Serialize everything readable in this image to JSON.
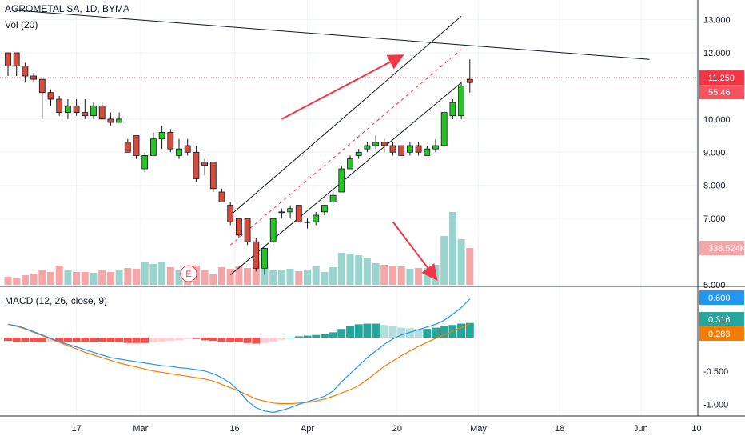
{
  "header": {
    "symbol": "AGROMETAL SA, 1D, BYMA",
    "volume_label": "Vol (20)",
    "macd_label": "MACD (12, 26, close, 9)"
  },
  "chart_data": [
    {
      "type": "candlestick",
      "title": "AGROMETAL SA, 1D, BYMA",
      "x_ticks": [
        "17",
        "Mar",
        "16",
        "Apr",
        "20",
        "May",
        "18",
        "Jun",
        "10"
      ],
      "y_ticks": [
        "13.000",
        "12.000",
        "10.000",
        "9.000",
        "8.000",
        "7.000",
        "5.000"
      ],
      "ylim": [
        5.0,
        13.4
      ],
      "last_price": "11.250",
      "countdown": "55:46",
      "volume_last": "338.524K",
      "event_marker": "E",
      "candles": [
        {
          "o": 12.0,
          "h": 12.0,
          "l": 11.3,
          "c": 11.6
        },
        {
          "o": 12.0,
          "h": 12.0,
          "l": 11.3,
          "c": 11.6
        },
        {
          "o": 11.6,
          "h": 11.7,
          "l": 11.1,
          "c": 11.3
        },
        {
          "o": 11.3,
          "h": 11.4,
          "l": 11.1,
          "c": 11.2
        },
        {
          "o": 11.2,
          "h": 11.2,
          "l": 10.0,
          "c": 10.8
        },
        {
          "o": 10.8,
          "h": 10.9,
          "l": 10.4,
          "c": 10.6
        },
        {
          "o": 10.6,
          "h": 10.7,
          "l": 10.1,
          "c": 10.2
        },
        {
          "o": 10.2,
          "h": 10.6,
          "l": 10.0,
          "c": 10.4
        },
        {
          "o": 10.4,
          "h": 10.6,
          "l": 10.1,
          "c": 10.2
        },
        {
          "o": 10.2,
          "h": 10.6,
          "l": 10.0,
          "c": 10.1
        },
        {
          "o": 10.1,
          "h": 10.5,
          "l": 10.0,
          "c": 10.4
        },
        {
          "o": 10.4,
          "h": 10.5,
          "l": 10.0,
          "c": 10.0
        },
        {
          "o": 10.0,
          "h": 10.2,
          "l": 9.8,
          "c": 9.9
        },
        {
          "o": 9.9,
          "h": 10.2,
          "l": 9.9,
          "c": 10.0
        },
        {
          "o": 9.3,
          "h": 9.4,
          "l": 9.0,
          "c": 9.0
        },
        {
          "o": 9.5,
          "h": 9.5,
          "l": 8.8,
          "c": 8.9
        },
        {
          "o": 8.5,
          "h": 9.0,
          "l": 8.4,
          "c": 8.9
        },
        {
          "o": 8.9,
          "h": 9.6,
          "l": 8.9,
          "c": 9.4
        },
        {
          "o": 9.4,
          "h": 9.8,
          "l": 9.1,
          "c": 9.6
        },
        {
          "o": 9.6,
          "h": 9.7,
          "l": 9.0,
          "c": 9.1
        },
        {
          "o": 8.9,
          "h": 9.4,
          "l": 8.8,
          "c": 9.1
        },
        {
          "o": 9.2,
          "h": 9.4,
          "l": 8.9,
          "c": 9.0
        },
        {
          "o": 9.0,
          "h": 9.2,
          "l": 8.1,
          "c": 8.2
        },
        {
          "o": 8.7,
          "h": 8.8,
          "l": 8.3,
          "c": 8.6
        },
        {
          "o": 8.7,
          "h": 8.7,
          "l": 7.8,
          "c": 7.9
        },
        {
          "o": 7.8,
          "h": 7.9,
          "l": 7.5,
          "c": 7.5
        },
        {
          "o": 7.4,
          "h": 7.5,
          "l": 6.8,
          "c": 6.9
        },
        {
          "o": 7.0,
          "h": 7.0,
          "l": 6.4,
          "c": 6.5
        },
        {
          "o": 7.0,
          "h": 7.0,
          "l": 6.2,
          "c": 6.3
        },
        {
          "o": 6.3,
          "h": 6.4,
          "l": 5.4,
          "c": 5.5
        },
        {
          "o": 5.5,
          "h": 6.1,
          "l": 5.3,
          "c": 6.1
        },
        {
          "o": 6.3,
          "h": 7.0,
          "l": 6.2,
          "c": 7.0
        },
        {
          "o": 7.2,
          "h": 7.3,
          "l": 7.0,
          "c": 7.2
        },
        {
          "o": 7.2,
          "h": 7.4,
          "l": 7.0,
          "c": 7.3
        },
        {
          "o": 7.4,
          "h": 7.4,
          "l": 6.9,
          "c": 6.9
        },
        {
          "o": 6.9,
          "h": 7.0,
          "l": 6.7,
          "c": 6.9
        },
        {
          "o": 6.9,
          "h": 7.2,
          "l": 6.8,
          "c": 7.1
        },
        {
          "o": 7.2,
          "h": 7.4,
          "l": 7.1,
          "c": 7.4
        },
        {
          "o": 7.5,
          "h": 7.8,
          "l": 7.4,
          "c": 7.7
        },
        {
          "o": 7.8,
          "h": 8.6,
          "l": 7.8,
          "c": 8.5
        },
        {
          "o": 8.5,
          "h": 8.9,
          "l": 8.5,
          "c": 8.8
        },
        {
          "o": 8.9,
          "h": 9.1,
          "l": 8.8,
          "c": 9.0
        },
        {
          "o": 9.1,
          "h": 9.3,
          "l": 9.0,
          "c": 9.2
        },
        {
          "o": 9.2,
          "h": 9.5,
          "l": 9.1,
          "c": 9.3
        },
        {
          "o": 9.3,
          "h": 9.4,
          "l": 9.0,
          "c": 9.2
        },
        {
          "o": 9.2,
          "h": 9.3,
          "l": 8.9,
          "c": 9.0
        },
        {
          "o": 9.2,
          "h": 9.2,
          "l": 8.9,
          "c": 8.9
        },
        {
          "o": 9.0,
          "h": 9.3,
          "l": 8.9,
          "c": 9.2
        },
        {
          "o": 9.2,
          "h": 9.3,
          "l": 8.9,
          "c": 9.0
        },
        {
          "o": 8.9,
          "h": 9.2,
          "l": 8.9,
          "c": 9.1
        },
        {
          "o": 9.1,
          "h": 9.4,
          "l": 9.0,
          "c": 9.2
        },
        {
          "o": 9.2,
          "h": 10.3,
          "l": 9.2,
          "c": 10.2
        },
        {
          "o": 10.1,
          "h": 10.6,
          "l": 10.0,
          "c": 10.5
        },
        {
          "o": 10.1,
          "h": 11.1,
          "l": 10.0,
          "c": 11.0
        },
        {
          "o": 11.2,
          "h": 11.8,
          "l": 10.8,
          "c": 11.1
        }
      ],
      "volume": [
        0.1,
        0.08,
        0.12,
        0.14,
        0.18,
        0.16,
        0.24,
        0.19,
        0.16,
        0.16,
        0.15,
        0.19,
        0.16,
        0.18,
        0.21,
        0.2,
        0.28,
        0.26,
        0.28,
        0.22,
        0.18,
        0.2,
        0.24,
        0.18,
        0.13,
        0.22,
        0.2,
        0.23,
        0.21,
        0.3,
        0.25,
        0.18,
        0.19,
        0.2,
        0.17,
        0.19,
        0.23,
        0.16,
        0.22,
        0.4,
        0.38,
        0.37,
        0.34,
        0.27,
        0.25,
        0.24,
        0.23,
        0.2,
        0.21,
        0.21,
        0.25,
        0.61,
        0.91,
        0.57,
        0.46
      ],
      "trend_arrow_up": {
        "from": {
          "x": 32,
          "y": 10.0
        },
        "to": {
          "x": 46,
          "y": 11.9
        }
      },
      "trend_arrow_down": {
        "from": {
          "x": 45,
          "y": 6.9
        },
        "to": {
          "x": 50,
          "y": 5.2
        }
      },
      "channel_upper": {
        "from": {
          "x": 26,
          "y": 7.1
        },
        "to": {
          "x": 53,
          "y": 13.1
        }
      },
      "channel_lower": {
        "from": {
          "x": 26,
          "y": 5.3
        },
        "to": {
          "x": 53,
          "y": 11.1
        }
      },
      "channel_mid": {
        "from": {
          "x": 26,
          "y": 6.2
        },
        "to": {
          "x": 53,
          "y": 12.1
        }
      },
      "resistance": {
        "from": {
          "x": 0,
          "y": 13.3
        },
        "to": {
          "x": 75,
          "y": 11.8
        }
      }
    },
    {
      "type": "macd",
      "title": "MACD (12, 26, close, 9)",
      "y_ticks": [
        "-0.500",
        "-1.000"
      ],
      "ylim": [
        -1.15,
        0.72
      ],
      "macd_value": "0.600",
      "histogram_value": "0.316",
      "signal_value": "0.283",
      "macd_line": [
        0.2,
        0.18,
        0.14,
        0.09,
        0.04,
        -0.01,
        -0.06,
        -0.1,
        -0.14,
        -0.18,
        -0.22,
        -0.26,
        -0.3,
        -0.32,
        -0.34,
        -0.36,
        -0.38,
        -0.4,
        -0.42,
        -0.43,
        -0.45,
        -0.46,
        -0.48,
        -0.5,
        -0.54,
        -0.6,
        -0.68,
        -0.8,
        -0.95,
        -1.05,
        -1.1,
        -1.12,
        -1.09,
        -1.05,
        -1.0,
        -0.96,
        -0.92,
        -0.88,
        -0.8,
        -0.66,
        -0.54,
        -0.42,
        -0.3,
        -0.2,
        -0.1,
        -0.02,
        0.04,
        0.08,
        0.12,
        0.16,
        0.2,
        0.26,
        0.35,
        0.45,
        0.58
      ],
      "signal_line": [
        0.2,
        0.17,
        0.13,
        0.08,
        0.03,
        -0.02,
        -0.07,
        -0.12,
        -0.17,
        -0.22,
        -0.26,
        -0.3,
        -0.34,
        -0.38,
        -0.41,
        -0.44,
        -0.47,
        -0.5,
        -0.52,
        -0.54,
        -0.56,
        -0.58,
        -0.6,
        -0.62,
        -0.65,
        -0.7,
        -0.75,
        -0.8,
        -0.86,
        -0.92,
        -0.95,
        -0.98,
        -0.99,
        -0.99,
        -0.98,
        -0.97,
        -0.95,
        -0.92,
        -0.88,
        -0.83,
        -0.78,
        -0.72,
        -0.63,
        -0.53,
        -0.43,
        -0.35,
        -0.27,
        -0.2,
        -0.13,
        -0.07,
        -0.01,
        0.04,
        0.1,
        0.15,
        0.21
      ],
      "histogram": [
        -0.05,
        -0.06,
        -0.06,
        -0.07,
        -0.07,
        -0.06,
        -0.06,
        -0.06,
        -0.06,
        -0.06,
        -0.06,
        -0.07,
        -0.07,
        -0.07,
        -0.08,
        -0.08,
        -0.08,
        -0.07,
        -0.06,
        -0.05,
        -0.04,
        -0.02,
        -0.02,
        -0.04,
        -0.05,
        -0.06,
        -0.06,
        -0.07,
        -0.08,
        -0.09,
        -0.08,
        -0.06,
        -0.03,
        0.0,
        0.02,
        0.03,
        0.04,
        0.05,
        0.08,
        0.13,
        0.17,
        0.2,
        0.21,
        0.21,
        0.19,
        0.17,
        0.15,
        0.14,
        0.13,
        0.13,
        0.15,
        0.17,
        0.19,
        0.21,
        0.22
      ]
    }
  ]
}
